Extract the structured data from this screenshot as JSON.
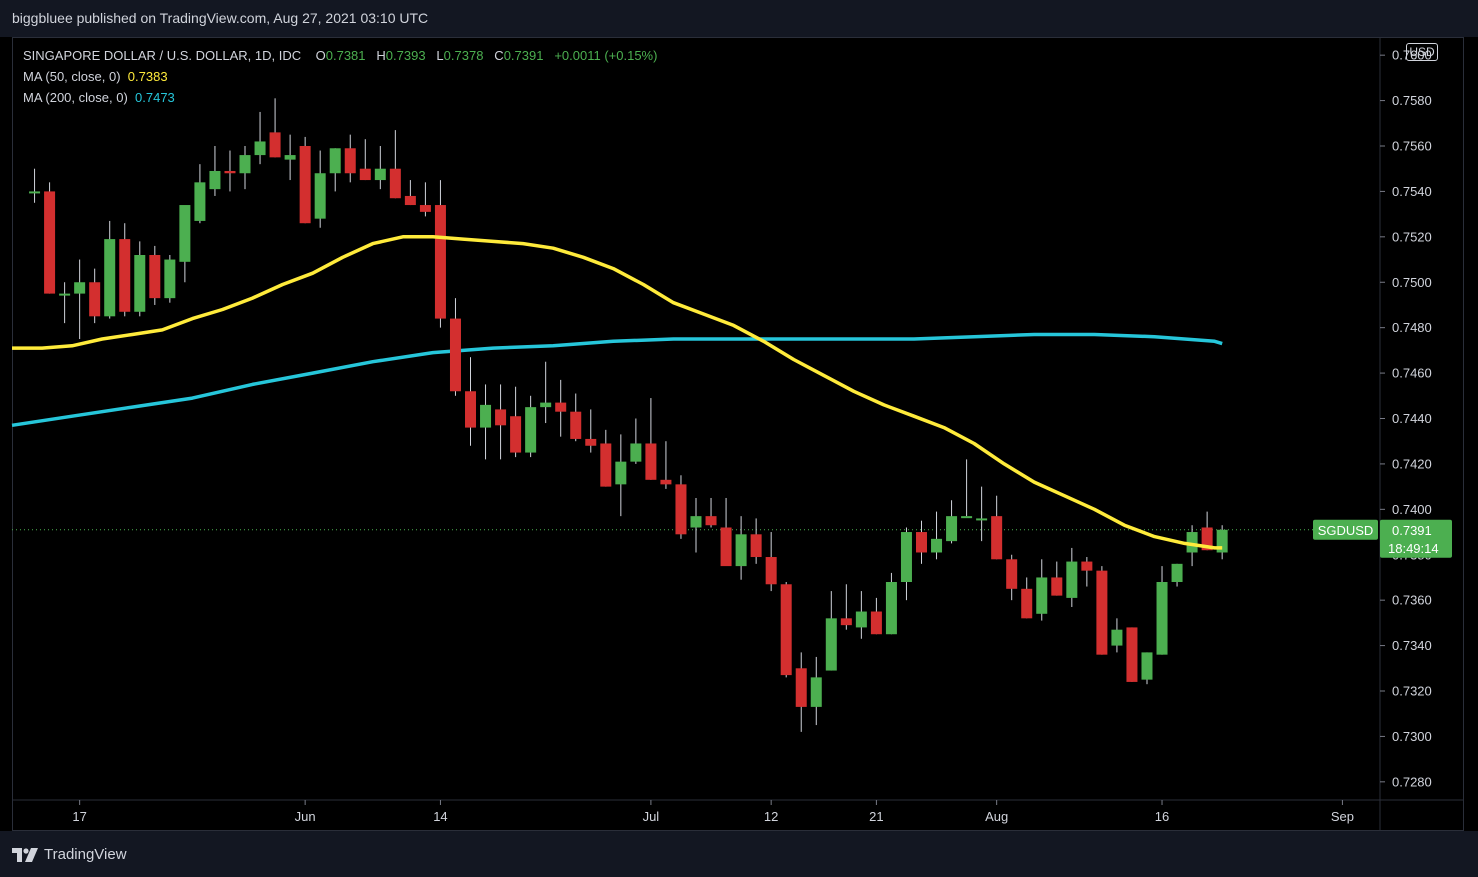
{
  "header": {
    "publisher_text": "biggbluee published on TradingView.com, Aug 27, 2021 03:10 UTC"
  },
  "legend": {
    "symbol": "SINGAPORE DOLLAR / U.S. DOLLAR, 1D, IDC",
    "o_label": "O",
    "o_value": "0.7381",
    "h_label": "H",
    "h_value": "0.7393",
    "l_label": "L",
    "l_value": "0.7378",
    "c_label": "C",
    "c_value": "0.7391",
    "change": "+0.0011 (+0.15%)",
    "ma50_label": "MA (50, close, 0)",
    "ma50_value": "0.7383",
    "ma200_label": "MA (200, close, 0)",
    "ma200_value": "0.7473"
  },
  "currency_button": "USD",
  "price_tag": {
    "symbol": "SGDUSD",
    "price": "0.7391",
    "countdown": "18:49:14"
  },
  "footer": {
    "logo_text": "TradingView",
    "logo_icon": "tradingview-logo-icon"
  },
  "colors": {
    "up": "#4caf50",
    "down": "#d32f2f",
    "ma50": "#ffeb3b",
    "ma200": "#26c6da",
    "background": "#000000",
    "text": "#d1d4dc",
    "tag": "#4caf50"
  },
  "chart_data": {
    "type": "candlestick",
    "symbol": "SGDUSD",
    "ylim": [
      0.7272,
      0.7608
    ],
    "yticks": [
      "0.7600",
      "0.7580",
      "0.7560",
      "0.7540",
      "0.7520",
      "0.7500",
      "0.7480",
      "0.7460",
      "0.7440",
      "0.7420",
      "0.7400",
      "0.7380",
      "0.7360",
      "0.7340",
      "0.7320",
      "0.7300",
      "0.7280"
    ],
    "xticks": [
      {
        "label": "17",
        "day": 3
      },
      {
        "label": "Jun",
        "day": 18
      },
      {
        "label": "14",
        "day": 27
      },
      {
        "label": "Jul",
        "day": 41
      },
      {
        "label": "12",
        "day": 49
      },
      {
        "label": "21",
        "day": 56
      },
      {
        "label": "Aug",
        "day": 64
      },
      {
        "label": "16",
        "day": 75
      },
      {
        "label": "Sep",
        "day": 87
      }
    ],
    "x_range_days": [
      -1.5,
      89.5
    ],
    "candles": [
      {
        "d": 0,
        "o": 0.754,
        "h": 0.755,
        "l": 0.7535,
        "c": 0.754
      },
      {
        "d": 1,
        "o": 0.754,
        "h": 0.7544,
        "l": 0.7495,
        "c": 0.7495
      },
      {
        "d": 2,
        "o": 0.7495,
        "h": 0.75,
        "l": 0.7482,
        "c": 0.7495
      },
      {
        "d": 3,
        "o": 0.7495,
        "h": 0.751,
        "l": 0.7475,
        "c": 0.75
      },
      {
        "d": 4,
        "o": 0.75,
        "h": 0.7506,
        "l": 0.7482,
        "c": 0.7485
      },
      {
        "d": 5,
        "o": 0.7485,
        "h": 0.7527,
        "l": 0.7484,
        "c": 0.7519
      },
      {
        "d": 6,
        "o": 0.7519,
        "h": 0.7526,
        "l": 0.7485,
        "c": 0.7487
      },
      {
        "d": 7,
        "o": 0.7487,
        "h": 0.7518,
        "l": 0.7485,
        "c": 0.7512
      },
      {
        "d": 8,
        "o": 0.7512,
        "h": 0.7516,
        "l": 0.749,
        "c": 0.7493
      },
      {
        "d": 9,
        "o": 0.7493,
        "h": 0.7512,
        "l": 0.7491,
        "c": 0.751
      },
      {
        "d": 10,
        "o": 0.7509,
        "h": 0.7533,
        "l": 0.75,
        "c": 0.7534
      },
      {
        "d": 11,
        "o": 0.7527,
        "h": 0.7552,
        "l": 0.7526,
        "c": 0.7544
      },
      {
        "d": 12,
        "o": 0.7541,
        "h": 0.756,
        "l": 0.7538,
        "c": 0.7549
      },
      {
        "d": 13,
        "o": 0.7549,
        "h": 0.7558,
        "l": 0.754,
        "c": 0.7548
      },
      {
        "d": 14,
        "o": 0.7548,
        "h": 0.756,
        "l": 0.7541,
        "c": 0.7556
      },
      {
        "d": 15,
        "o": 0.7556,
        "h": 0.7575,
        "l": 0.7552,
        "c": 0.7562
      },
      {
        "d": 16,
        "o": 0.7566,
        "h": 0.7581,
        "l": 0.7555,
        "c": 0.7555
      },
      {
        "d": 17,
        "o": 0.7554,
        "h": 0.7565,
        "l": 0.7545,
        "c": 0.7556
      },
      {
        "d": 18,
        "o": 0.756,
        "h": 0.7564,
        "l": 0.7526,
        "c": 0.7526
      },
      {
        "d": 19,
        "o": 0.7528,
        "h": 0.7558,
        "l": 0.7524,
        "c": 0.7548
      },
      {
        "d": 20,
        "o": 0.7548,
        "h": 0.7559,
        "l": 0.754,
        "c": 0.7559
      },
      {
        "d": 21,
        "o": 0.7559,
        "h": 0.7565,
        "l": 0.7544,
        "c": 0.7548
      },
      {
        "d": 22,
        "o": 0.755,
        "h": 0.7563,
        "l": 0.7545,
        "c": 0.7545
      },
      {
        "d": 23,
        "o": 0.7545,
        "h": 0.756,
        "l": 0.7541,
        "c": 0.755
      },
      {
        "d": 24,
        "o": 0.755,
        "h": 0.7567,
        "l": 0.7537,
        "c": 0.7537
      },
      {
        "d": 25,
        "o": 0.7538,
        "h": 0.7545,
        "l": 0.7534,
        "c": 0.7534
      },
      {
        "d": 26,
        "o": 0.7534,
        "h": 0.7544,
        "l": 0.7529,
        "c": 0.7531
      },
      {
        "d": 27,
        "o": 0.7534,
        "h": 0.7545,
        "l": 0.748,
        "c": 0.7484
      },
      {
        "d": 28,
        "o": 0.7484,
        "h": 0.7493,
        "l": 0.745,
        "c": 0.7452
      },
      {
        "d": 29,
        "o": 0.7452,
        "h": 0.7467,
        "l": 0.7428,
        "c": 0.7436
      },
      {
        "d": 30,
        "o": 0.7436,
        "h": 0.7455,
        "l": 0.7422,
        "c": 0.7446
      },
      {
        "d": 31,
        "o": 0.7444,
        "h": 0.7455,
        "l": 0.7422,
        "c": 0.7437
      },
      {
        "d": 32,
        "o": 0.7441,
        "h": 0.7454,
        "l": 0.7423,
        "c": 0.7425
      },
      {
        "d": 33,
        "o": 0.7425,
        "h": 0.745,
        "l": 0.7423,
        "c": 0.7445
      },
      {
        "d": 34,
        "o": 0.7445,
        "h": 0.7465,
        "l": 0.7438,
        "c": 0.7447
      },
      {
        "d": 35,
        "o": 0.7447,
        "h": 0.7457,
        "l": 0.7432,
        "c": 0.7443
      },
      {
        "d": 36,
        "o": 0.7443,
        "h": 0.7451,
        "l": 0.743,
        "c": 0.7431
      },
      {
        "d": 37,
        "o": 0.7431,
        "h": 0.7444,
        "l": 0.7425,
        "c": 0.7428
      },
      {
        "d": 38,
        "o": 0.7429,
        "h": 0.7435,
        "l": 0.741,
        "c": 0.741
      },
      {
        "d": 39,
        "o": 0.7411,
        "h": 0.7433,
        "l": 0.7397,
        "c": 0.7421
      },
      {
        "d": 40,
        "o": 0.7421,
        "h": 0.744,
        "l": 0.742,
        "c": 0.7429
      },
      {
        "d": 41,
        "o": 0.7429,
        "h": 0.7449,
        "l": 0.7413,
        "c": 0.7413
      },
      {
        "d": 42,
        "o": 0.7413,
        "h": 0.743,
        "l": 0.7409,
        "c": 0.7411
      },
      {
        "d": 43,
        "o": 0.7411,
        "h": 0.7415,
        "l": 0.7387,
        "c": 0.7389
      },
      {
        "d": 44,
        "o": 0.7392,
        "h": 0.7405,
        "l": 0.7381,
        "c": 0.7397
      },
      {
        "d": 45,
        "o": 0.7397,
        "h": 0.7405,
        "l": 0.7392,
        "c": 0.7393
      },
      {
        "d": 46,
        "o": 0.7392,
        "h": 0.7405,
        "l": 0.7377,
        "c": 0.7375
      },
      {
        "d": 47,
        "o": 0.7375,
        "h": 0.7397,
        "l": 0.7369,
        "c": 0.7389
      },
      {
        "d": 48,
        "o": 0.7389,
        "h": 0.7396,
        "l": 0.7376,
        "c": 0.7379
      },
      {
        "d": 49,
        "o": 0.7379,
        "h": 0.739,
        "l": 0.7364,
        "c": 0.7367
      },
      {
        "d": 50,
        "o": 0.7367,
        "h": 0.7368,
        "l": 0.7326,
        "c": 0.7327
      },
      {
        "d": 51,
        "o": 0.733,
        "h": 0.7337,
        "l": 0.7302,
        "c": 0.7313
      },
      {
        "d": 52,
        "o": 0.7313,
        "h": 0.7335,
        "l": 0.7305,
        "c": 0.7326
      },
      {
        "d": 53,
        "o": 0.7329,
        "h": 0.7364,
        "l": 0.7329,
        "c": 0.7352
      },
      {
        "d": 54,
        "o": 0.7352,
        "h": 0.7367,
        "l": 0.7347,
        "c": 0.7349
      },
      {
        "d": 55,
        "o": 0.7348,
        "h": 0.7364,
        "l": 0.7343,
        "c": 0.7355
      },
      {
        "d": 56,
        "o": 0.7355,
        "h": 0.7361,
        "l": 0.7345,
        "c": 0.7345
      },
      {
        "d": 57,
        "o": 0.7345,
        "h": 0.7372,
        "l": 0.7345,
        "c": 0.7368
      },
      {
        "d": 58,
        "o": 0.7368,
        "h": 0.7392,
        "l": 0.736,
        "c": 0.739
      },
      {
        "d": 59,
        "o": 0.739,
        "h": 0.7395,
        "l": 0.7376,
        "c": 0.7381
      },
      {
        "d": 60,
        "o": 0.7381,
        "h": 0.7399,
        "l": 0.7378,
        "c": 0.7387
      },
      {
        "d": 61,
        "o": 0.7386,
        "h": 0.7404,
        "l": 0.7385,
        "c": 0.7397
      },
      {
        "d": 62,
        "o": 0.7397,
        "h": 0.7422,
        "l": 0.7397,
        "c": 0.7397
      },
      {
        "d": 63,
        "o": 0.7396,
        "h": 0.741,
        "l": 0.7386,
        "c": 0.7396
      },
      {
        "d": 64,
        "o": 0.7397,
        "h": 0.7406,
        "l": 0.7378,
        "c": 0.7378
      },
      {
        "d": 65,
        "o": 0.7378,
        "h": 0.738,
        "l": 0.736,
        "c": 0.7365
      },
      {
        "d": 66,
        "o": 0.7365,
        "h": 0.737,
        "l": 0.7352,
        "c": 0.7352
      },
      {
        "d": 67,
        "o": 0.7354,
        "h": 0.7378,
        "l": 0.7351,
        "c": 0.737
      },
      {
        "d": 68,
        "o": 0.737,
        "h": 0.7377,
        "l": 0.7362,
        "c": 0.7362
      },
      {
        "d": 69,
        "o": 0.7361,
        "h": 0.7383,
        "l": 0.7357,
        "c": 0.7377
      },
      {
        "d": 70,
        "o": 0.7377,
        "h": 0.7379,
        "l": 0.7366,
        "c": 0.7373
      },
      {
        "d": 71,
        "o": 0.7373,
        "h": 0.7375,
        "l": 0.7336,
        "c": 0.7336
      },
      {
        "d": 72,
        "o": 0.734,
        "h": 0.7352,
        "l": 0.7337,
        "c": 0.7347
      },
      {
        "d": 73,
        "o": 0.7348,
        "h": 0.7348,
        "l": 0.7324,
        "c": 0.7324
      },
      {
        "d": 74,
        "o": 0.7325,
        "h": 0.7337,
        "l": 0.7323,
        "c": 0.7337
      },
      {
        "d": 75,
        "o": 0.7336,
        "h": 0.7375,
        "l": 0.7336,
        "c": 0.7368
      },
      {
        "d": 76,
        "o": 0.7368,
        "h": 0.7376,
        "l": 0.7366,
        "c": 0.7376
      },
      {
        "d": 77,
        "o": 0.7381,
        "h": 0.7393,
        "l": 0.7375,
        "c": 0.739
      },
      {
        "d": 78,
        "o": 0.7392,
        "h": 0.7399,
        "l": 0.7382,
        "c": 0.7382
      },
      {
        "d": 79,
        "o": 0.7381,
        "h": 0.7393,
        "l": 0.7378,
        "c": 0.7391
      }
    ],
    "ma50": [
      [
        -1.5,
        0.7471
      ],
      [
        0.5,
        0.7471
      ],
      [
        2.5,
        0.7472
      ],
      [
        4.5,
        0.7475
      ],
      [
        6.5,
        0.7477
      ],
      [
        8.5,
        0.7479
      ],
      [
        10.5,
        0.7484
      ],
      [
        12.5,
        0.7488
      ],
      [
        14.5,
        0.7493
      ],
      [
        16.5,
        0.7499
      ],
      [
        18.5,
        0.7504
      ],
      [
        20.5,
        0.7511
      ],
      [
        22.5,
        0.7517
      ],
      [
        24.5,
        0.752
      ],
      [
        26.5,
        0.752
      ],
      [
        28.5,
        0.7519
      ],
      [
        30.5,
        0.7518
      ],
      [
        32.5,
        0.7517
      ],
      [
        34.5,
        0.7515
      ],
      [
        36.5,
        0.7511
      ],
      [
        38.5,
        0.7506
      ],
      [
        40.5,
        0.7499
      ],
      [
        42.5,
        0.7491
      ],
      [
        44.5,
        0.7486
      ],
      [
        46.5,
        0.7481
      ],
      [
        48.5,
        0.7474
      ],
      [
        50.5,
        0.7466
      ],
      [
        52.5,
        0.7459
      ],
      [
        54.5,
        0.7452
      ],
      [
        56.5,
        0.7446
      ],
      [
        58.5,
        0.7441
      ],
      [
        60.5,
        0.7436
      ],
      [
        62.5,
        0.7429
      ],
      [
        64.5,
        0.742
      ],
      [
        66.5,
        0.7412
      ],
      [
        68.5,
        0.7406
      ],
      [
        70.5,
        0.74
      ],
      [
        72.5,
        0.7393
      ],
      [
        74.5,
        0.7388
      ],
      [
        76.5,
        0.7385
      ],
      [
        78.5,
        0.7383
      ],
      [
        79.0,
        0.7383
      ]
    ],
    "ma200": [
      [
        -1.5,
        0.7437
      ],
      [
        2.5,
        0.7441
      ],
      [
        6.5,
        0.7445
      ],
      [
        10.5,
        0.7449
      ],
      [
        14.5,
        0.7455
      ],
      [
        18.5,
        0.746
      ],
      [
        22.5,
        0.7465
      ],
      [
        26.5,
        0.7469
      ],
      [
        30.5,
        0.7471
      ],
      [
        34.5,
        0.7472
      ],
      [
        38.5,
        0.7474
      ],
      [
        42.5,
        0.7475
      ],
      [
        46.5,
        0.7475
      ],
      [
        50.5,
        0.7475
      ],
      [
        54.5,
        0.7475
      ],
      [
        58.5,
        0.7475
      ],
      [
        62.5,
        0.7476
      ],
      [
        66.5,
        0.7477
      ],
      [
        70.5,
        0.7477
      ],
      [
        74.5,
        0.7476
      ],
      [
        78.5,
        0.7474
      ],
      [
        79.0,
        0.7473
      ]
    ],
    "last_price": 0.7391
  }
}
